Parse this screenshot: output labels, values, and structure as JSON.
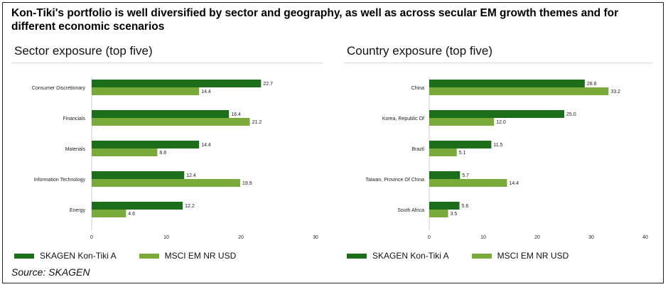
{
  "headline": "Kon-Tiki's portfolio is well diversified by sector and geography, as well as across secular EM growth themes and for different economic scenarios",
  "source": "Source: SKAGEN",
  "colors": {
    "fund": "#1d6e1b",
    "benchmark": "#7aaa3a"
  },
  "chart_data": [
    {
      "type": "bar",
      "orientation": "horizontal",
      "title": "Sector exposure (top five)",
      "categories": [
        "Consumer Discretionary",
        "Financials",
        "Materials",
        "Information Technology",
        "Energy"
      ],
      "series": [
        {
          "name": "SKAGEN Kon-Tiki A",
          "values": [
            22.7,
            18.4,
            14.4,
            12.4,
            12.2
          ],
          "labels": [
            "22.7",
            "18.4",
            "14.4",
            "12.4",
            "12.2"
          ]
        },
        {
          "name": "MSCI EM NR USD",
          "values": [
            14.4,
            21.2,
            8.8,
            19.9,
            4.6
          ],
          "labels": [
            "14.4",
            "21.2",
            "8.8",
            "19.9",
            "4.6"
          ]
        }
      ],
      "xlim": [
        0,
        30
      ],
      "xticks": [
        "0",
        "10",
        "20",
        "30"
      ],
      "legend_position": "bottom"
    },
    {
      "type": "bar",
      "orientation": "horizontal",
      "title": "Country exposure (top five)",
      "categories": [
        "China",
        "Korea, Republic Of",
        "Brazil",
        "Taiwan, Province Of China",
        "South Africa"
      ],
      "series": [
        {
          "name": "SKAGEN Kon-Tiki A",
          "values": [
            28.8,
            25.0,
            11.5,
            5.7,
            5.6
          ],
          "labels": [
            "28.8",
            "25.0",
            "11.5",
            "5.7",
            "5.6"
          ]
        },
        {
          "name": "MSCI EM NR USD",
          "values": [
            33.2,
            12.0,
            5.1,
            14.4,
            3.5
          ],
          "labels": [
            "33.2",
            "12.0",
            "5.1",
            "14.4",
            "3.5"
          ]
        }
      ],
      "xlim": [
        0,
        40
      ],
      "xticks": [
        "0",
        "10",
        "20",
        "30",
        "40"
      ],
      "legend_position": "bottom"
    }
  ]
}
